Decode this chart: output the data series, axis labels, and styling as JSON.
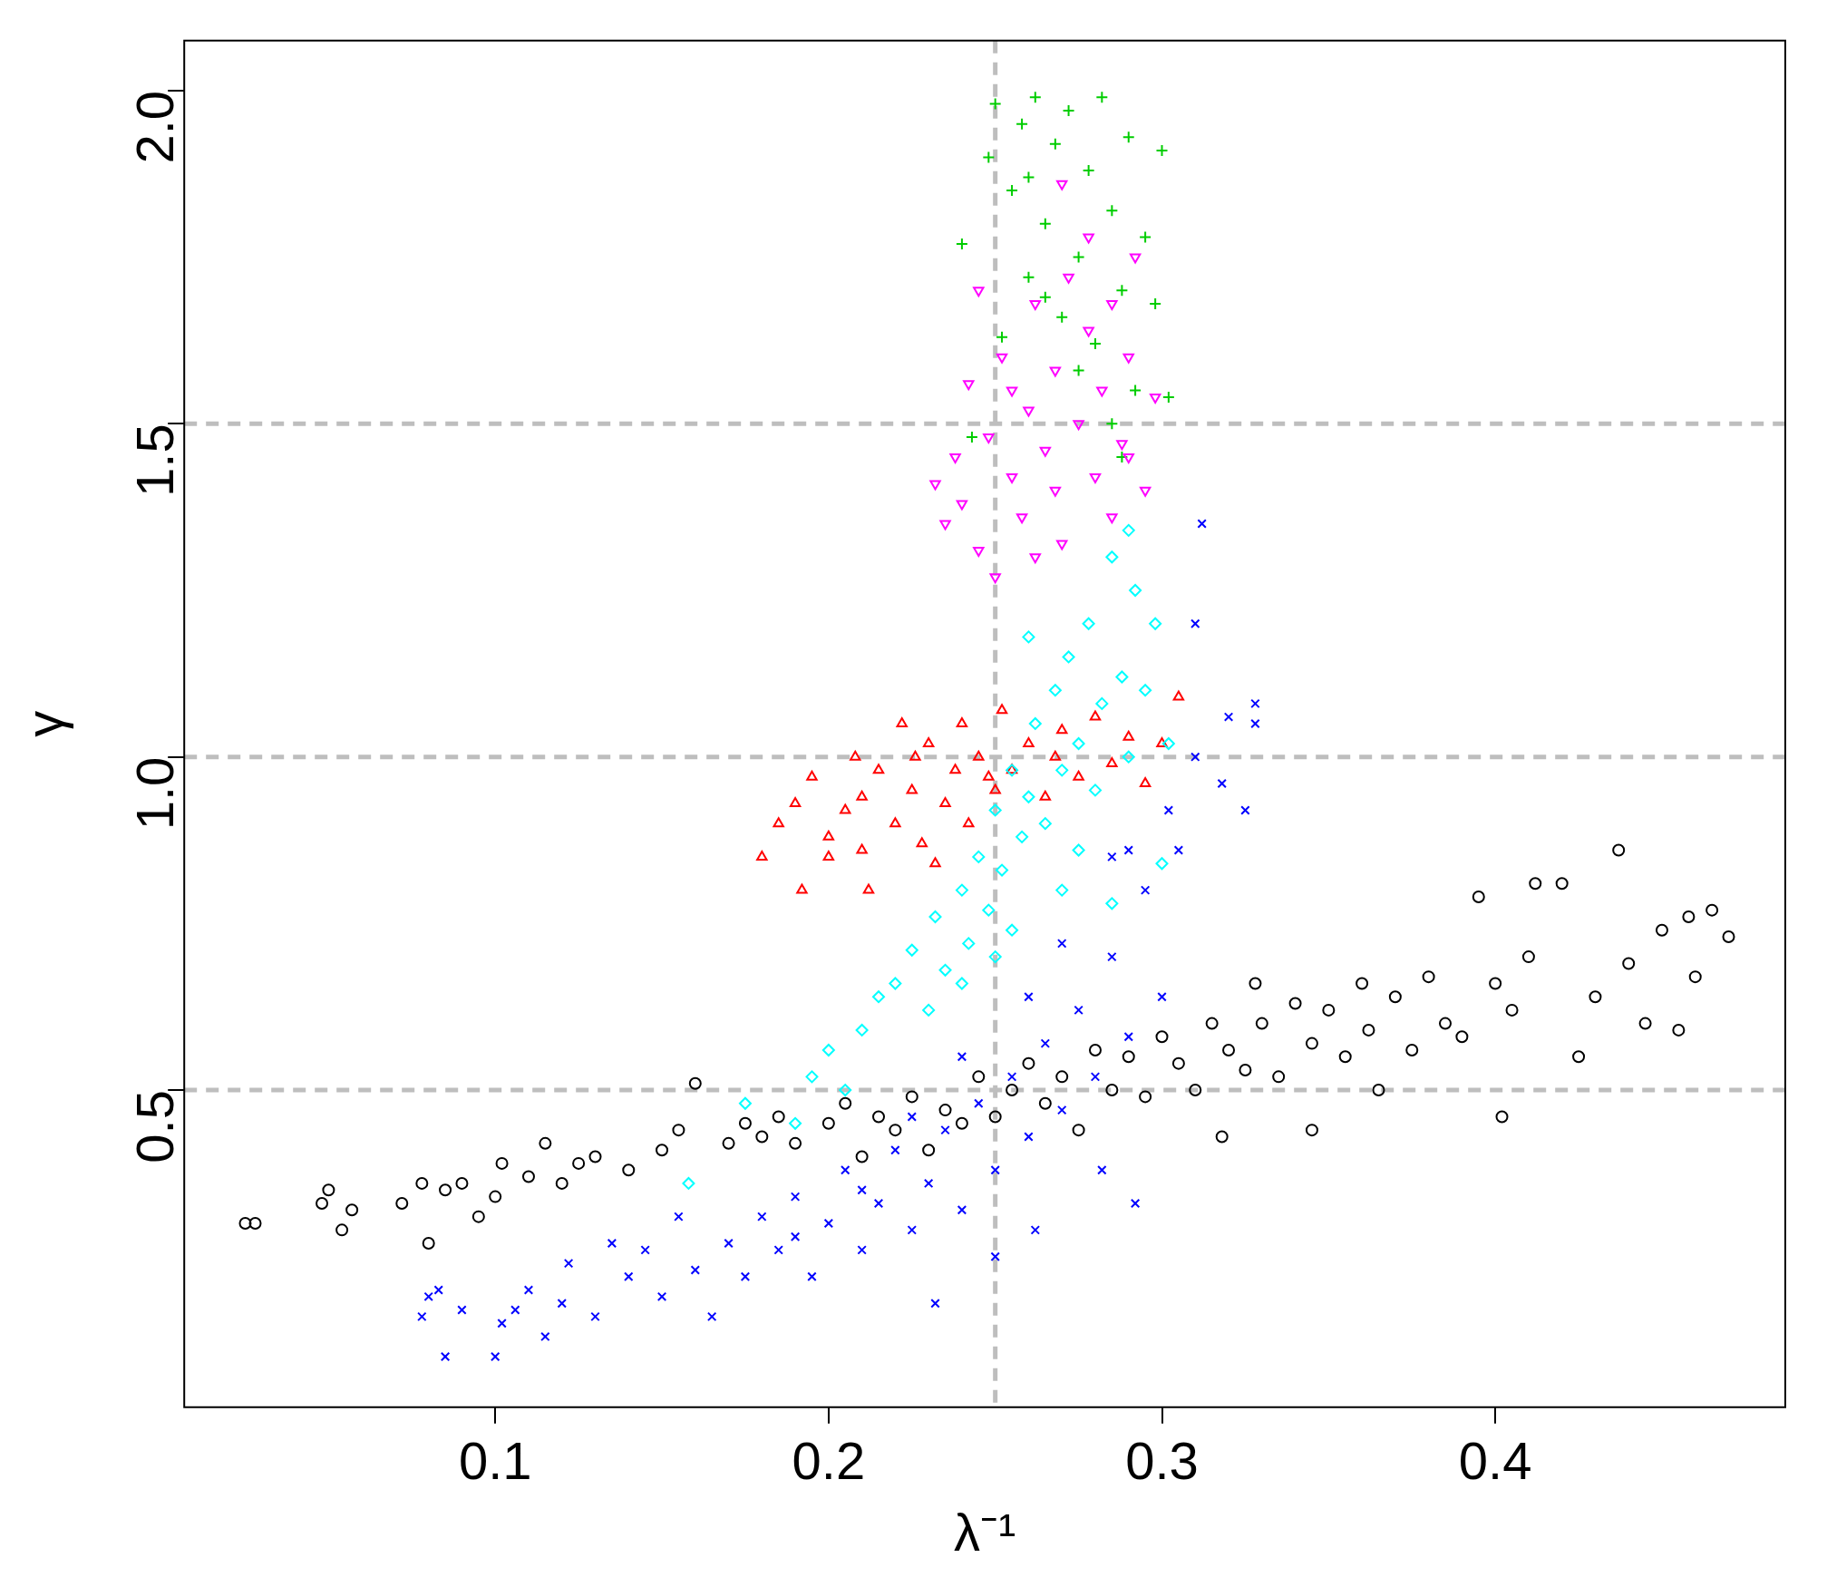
{
  "chart_data": {
    "type": "scatter",
    "xlabel": "λ⁻¹",
    "ylabel": "γ",
    "xlim": [
      0.0067,
      0.487
    ],
    "ylim": [
      0.024,
      2.075
    ],
    "xticks": [
      0.1,
      0.2,
      0.3,
      0.4
    ],
    "yticks": [
      0.5,
      {
        "value": 1,
        "label": "1.0"
      },
      1.5,
      {
        "value": 2,
        "label": "2.0"
      }
    ],
    "legend": false,
    "ref_lines": [
      {
        "axis": "y",
        "value": 0.5,
        "color": "#bebebe",
        "line_style": "dashed"
      },
      {
        "axis": "y",
        "value": 1,
        "color": "#bebebe",
        "line_style": "dashed"
      },
      {
        "axis": "y",
        "value": 1.5,
        "color": "#bebebe",
        "line_style": "dashed"
      },
      {
        "axis": "x",
        "value": 0.25,
        "color": "#bebebe",
        "line_style": "dashed"
      }
    ],
    "series": [
      {
        "color": "#000000",
        "marker": "circle",
        "x": [
          0.025,
          0.028,
          0.048,
          0.05,
          0.054,
          0.057,
          0.072,
          0.078,
          0.08,
          0.085,
          0.09,
          0.095,
          0.1,
          0.102,
          0.11,
          0.115,
          0.12,
          0.125,
          0.13,
          0.14,
          0.15,
          0.155,
          0.16,
          0.17,
          0.175,
          0.18,
          0.185,
          0.19,
          0.2,
          0.205,
          0.21,
          0.215,
          0.22,
          0.225,
          0.23,
          0.235,
          0.24,
          0.245,
          0.25,
          0.255,
          0.26,
          0.265,
          0.27,
          0.275,
          0.28,
          0.285,
          0.29,
          0.295,
          0.3,
          0.305,
          0.31,
          0.315,
          0.32,
          0.325,
          0.328,
          0.33,
          0.335,
          0.34,
          0.345,
          0.35,
          0.355,
          0.36,
          0.362,
          0.365,
          0.37,
          0.375,
          0.38,
          0.385,
          0.39,
          0.395,
          0.4,
          0.402,
          0.405,
          0.41,
          0.412,
          0.42,
          0.425,
          0.43,
          0.437,
          0.44,
          0.445,
          0.45,
          0.455,
          0.458,
          0.46,
          0.465,
          0.47,
          0.318,
          0.345
        ],
        "values": [
          0.3,
          0.3,
          0.33,
          0.35,
          0.29,
          0.32,
          0.33,
          0.36,
          0.27,
          0.35,
          0.36,
          0.31,
          0.34,
          0.39,
          0.37,
          0.42,
          0.36,
          0.39,
          0.4,
          0.38,
          0.41,
          0.44,
          0.51,
          0.42,
          0.45,
          0.43,
          0.46,
          0.42,
          0.45,
          0.48,
          0.4,
          0.46,
          0.44,
          0.49,
          0.41,
          0.47,
          0.45,
          0.52,
          0.46,
          0.5,
          0.54,
          0.48,
          0.52,
          0.44,
          0.56,
          0.5,
          0.55,
          0.49,
          0.58,
          0.54,
          0.5,
          0.6,
          0.56,
          0.53,
          0.66,
          0.6,
          0.52,
          0.63,
          0.57,
          0.62,
          0.55,
          0.66,
          0.59,
          0.5,
          0.64,
          0.56,
          0.67,
          0.6,
          0.58,
          0.79,
          0.66,
          0.46,
          0.62,
          0.7,
          0.81,
          0.81,
          0.55,
          0.64,
          0.86,
          0.69,
          0.6,
          0.74,
          0.59,
          0.76,
          0.67,
          0.77,
          0.73,
          0.43,
          0.44
        ]
      },
      {
        "color": "#0000ff",
        "marker": "cross",
        "x": [
          0.078,
          0.08,
          0.083,
          0.085,
          0.09,
          0.1,
          0.102,
          0.106,
          0.11,
          0.115,
          0.12,
          0.122,
          0.13,
          0.135,
          0.14,
          0.145,
          0.15,
          0.155,
          0.16,
          0.165,
          0.17,
          0.175,
          0.18,
          0.185,
          0.19,
          0.195,
          0.2,
          0.205,
          0.21,
          0.215,
          0.22,
          0.225,
          0.23,
          0.232,
          0.235,
          0.24,
          0.245,
          0.25,
          0.25,
          0.255,
          0.26,
          0.262,
          0.265,
          0.27,
          0.275,
          0.28,
          0.282,
          0.285,
          0.29,
          0.292,
          0.295,
          0.3,
          0.302,
          0.305,
          0.31,
          0.31,
          0.312,
          0.318,
          0.325,
          0.328,
          0.328,
          0.32,
          0.29,
          0.285,
          0.27,
          0.26,
          0.24,
          0.225,
          0.21,
          0.19
        ],
        "values": [
          0.16,
          0.19,
          0.2,
          0.1,
          0.17,
          0.1,
          0.15,
          0.17,
          0.2,
          0.13,
          0.18,
          0.24,
          0.16,
          0.27,
          0.22,
          0.26,
          0.19,
          0.31,
          0.23,
          0.16,
          0.27,
          0.22,
          0.31,
          0.26,
          0.34,
          0.22,
          0.3,
          0.38,
          0.26,
          0.33,
          0.41,
          0.29,
          0.36,
          0.18,
          0.44,
          0.32,
          0.48,
          0.38,
          0.25,
          0.52,
          0.43,
          0.29,
          0.57,
          0.47,
          0.62,
          0.52,
          0.38,
          0.7,
          0.58,
          0.33,
          0.8,
          0.64,
          0.92,
          0.86,
          1.0,
          1.2,
          1.35,
          0.96,
          0.92,
          1.05,
          1.08,
          1.06,
          0.86,
          0.85,
          0.72,
          0.64,
          0.55,
          0.46,
          0.35,
          0.28
        ]
      },
      {
        "color": "#ff0000",
        "marker": "triangle",
        "x": [
          0.18,
          0.185,
          0.19,
          0.192,
          0.195,
          0.2,
          0.205,
          0.208,
          0.21,
          0.212,
          0.215,
          0.22,
          0.222,
          0.225,
          0.228,
          0.23,
          0.235,
          0.238,
          0.24,
          0.242,
          0.245,
          0.25,
          0.252,
          0.255,
          0.26,
          0.265,
          0.27,
          0.275,
          0.28,
          0.285,
          0.29,
          0.295,
          0.3,
          0.305,
          0.21,
          0.232,
          0.2,
          0.226,
          0.248,
          0.268
        ],
        "values": [
          0.85,
          0.9,
          0.93,
          0.8,
          0.97,
          0.88,
          0.92,
          1.0,
          0.94,
          0.8,
          0.98,
          0.9,
          1.05,
          0.95,
          0.87,
          1.02,
          0.93,
          0.98,
          1.05,
          0.9,
          1.0,
          0.95,
          1.07,
          0.98,
          1.02,
          0.94,
          1.04,
          0.97,
          1.06,
          0.99,
          1.03,
          0.96,
          1.02,
          1.09,
          0.86,
          0.84,
          0.85,
          1.0,
          0.97,
          1.0
        ]
      },
      {
        "color": "#00ffff",
        "marker": "diamond",
        "x": [
          0.158,
          0.175,
          0.19,
          0.195,
          0.2,
          0.205,
          0.21,
          0.215,
          0.22,
          0.225,
          0.23,
          0.232,
          0.235,
          0.24,
          0.242,
          0.245,
          0.248,
          0.25,
          0.252,
          0.255,
          0.258,
          0.26,
          0.262,
          0.265,
          0.268,
          0.27,
          0.272,
          0.275,
          0.278,
          0.28,
          0.282,
          0.285,
          0.288,
          0.29,
          0.292,
          0.295,
          0.298,
          0.3,
          0.302,
          0.285,
          0.275,
          0.26,
          0.27,
          0.29,
          0.255,
          0.24,
          0.25
        ],
        "values": [
          0.36,
          0.48,
          0.45,
          0.52,
          0.56,
          0.5,
          0.59,
          0.64,
          0.66,
          0.71,
          0.62,
          0.76,
          0.68,
          0.8,
          0.72,
          0.85,
          0.77,
          0.92,
          0.83,
          0.98,
          0.88,
          0.94,
          1.05,
          0.9,
          1.1,
          0.98,
          1.15,
          1.02,
          1.2,
          0.95,
          1.08,
          1.3,
          1.12,
          1.0,
          1.25,
          1.1,
          1.2,
          0.84,
          1.02,
          0.78,
          0.86,
          1.18,
          0.8,
          1.34,
          0.74,
          0.66,
          0.7
        ]
      },
      {
        "color": "#00cd00",
        "marker": "plus",
        "x": [
          0.24,
          0.243,
          0.248,
          0.25,
          0.252,
          0.255,
          0.258,
          0.26,
          0.262,
          0.265,
          0.268,
          0.27,
          0.272,
          0.275,
          0.278,
          0.28,
          0.282,
          0.285,
          0.288,
          0.29,
          0.292,
          0.295,
          0.298,
          0.3,
          0.302,
          0.288,
          0.285,
          0.26,
          0.275,
          0.265
        ],
        "values": [
          1.77,
          1.48,
          1.9,
          1.98,
          1.63,
          1.85,
          1.95,
          1.72,
          1.99,
          1.8,
          1.92,
          1.66,
          1.97,
          1.75,
          1.88,
          1.62,
          1.99,
          1.82,
          1.7,
          1.93,
          1.55,
          1.78,
          1.68,
          1.91,
          1.54,
          1.45,
          1.5,
          1.87,
          1.58,
          1.69
        ]
      },
      {
        "color": "#ff00ff",
        "marker": "triangle-down",
        "x": [
          0.232,
          0.235,
          0.238,
          0.24,
          0.242,
          0.245,
          0.248,
          0.25,
          0.252,
          0.255,
          0.258,
          0.26,
          0.262,
          0.265,
          0.268,
          0.27,
          0.272,
          0.275,
          0.278,
          0.28,
          0.282,
          0.285,
          0.288,
          0.29,
          0.292,
          0.295,
          0.298,
          0.27,
          0.278,
          0.262,
          0.255,
          0.245,
          0.268,
          0.285,
          0.29
        ],
        "values": [
          1.41,
          1.35,
          1.45,
          1.38,
          1.56,
          1.31,
          1.48,
          1.27,
          1.6,
          1.42,
          1.36,
          1.52,
          1.68,
          1.46,
          1.58,
          1.32,
          1.72,
          1.5,
          1.64,
          1.42,
          1.55,
          1.68,
          1.47,
          1.6,
          1.75,
          1.4,
          1.54,
          1.86,
          1.78,
          1.3,
          1.55,
          1.7,
          1.4,
          1.36,
          1.45
        ]
      }
    ]
  }
}
